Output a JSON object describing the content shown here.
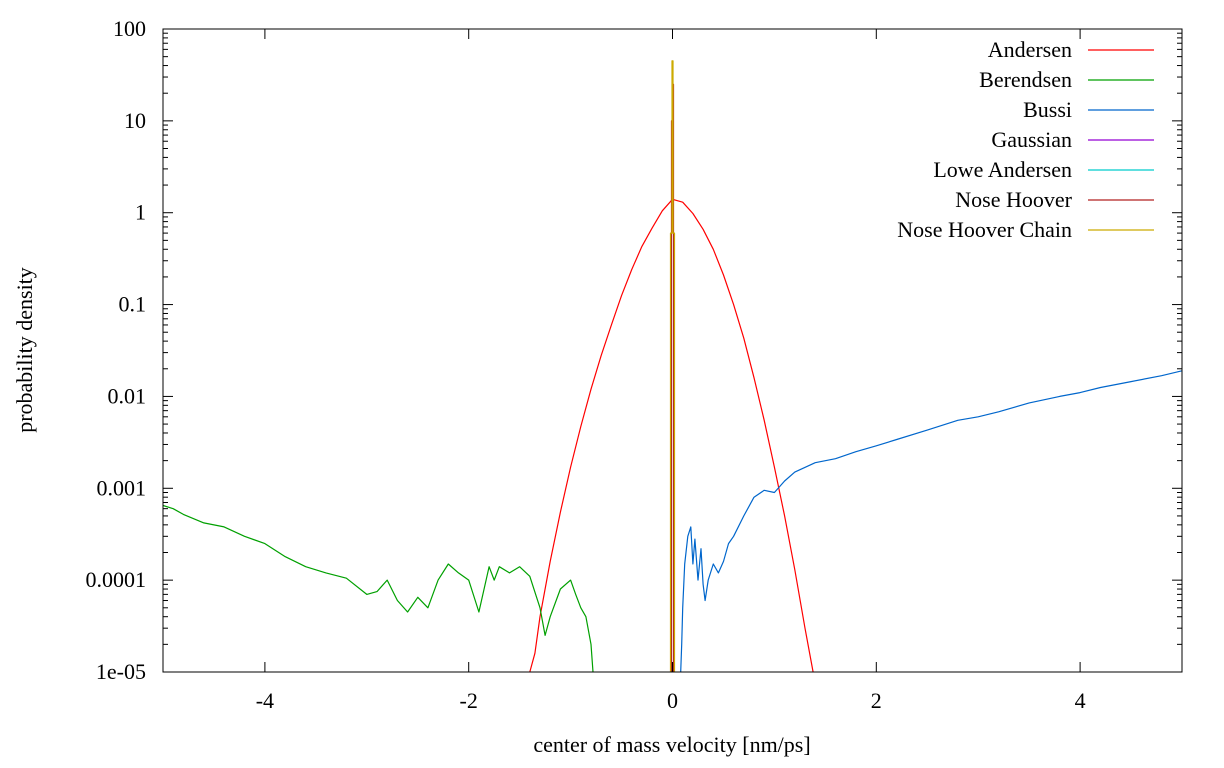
{
  "chart_data": {
    "type": "line",
    "xlabel": "center of mass velocity [nm/ps]",
    "ylabel": "probability density",
    "x_scale": "linear",
    "y_scale": "log",
    "xlim": [
      -5,
      5
    ],
    "ylim": [
      1e-05,
      100
    ],
    "x_ticks": [
      -4,
      -2,
      0,
      2,
      4
    ],
    "x_tick_labels": [
      "-4",
      "-2",
      "0",
      "2",
      "4"
    ],
    "y_ticks": [
      1e-05,
      0.0001,
      0.001,
      0.01,
      0.1,
      1,
      10,
      100
    ],
    "y_tick_labels": [
      "1e-05",
      "0.0001",
      "0.001",
      "0.01",
      "0.1",
      "1",
      "10",
      "100"
    ],
    "grid": false,
    "legend_position": "top-right",
    "series": [
      {
        "name": "Andersen",
        "color": "#ff0000",
        "x": [
          -1.4,
          -1.35,
          -1.3,
          -1.25,
          -1.2,
          -1.1,
          -1.0,
          -0.9,
          -0.8,
          -0.7,
          -0.6,
          -0.5,
          -0.4,
          -0.3,
          -0.2,
          -0.1,
          0.0,
          0.1,
          0.2,
          0.3,
          0.4,
          0.5,
          0.6,
          0.7,
          0.8,
          0.9,
          1.0,
          1.1,
          1.2,
          1.3,
          1.38
        ],
        "y": [
          1e-05,
          1.6e-05,
          4e-05,
          8e-05,
          0.00016,
          0.00055,
          0.0017,
          0.0047,
          0.012,
          0.028,
          0.06,
          0.125,
          0.24,
          0.43,
          0.68,
          1.05,
          1.4,
          1.3,
          0.98,
          0.66,
          0.4,
          0.21,
          0.1,
          0.043,
          0.016,
          0.0055,
          0.0017,
          0.0005,
          0.00013,
          3e-05,
          1e-05
        ]
      },
      {
        "name": "Berendsen",
        "color": "#00a000",
        "x": [
          -5.0,
          -4.9,
          -4.8,
          -4.6,
          -4.4,
          -4.2,
          -4.0,
          -3.8,
          -3.6,
          -3.4,
          -3.2,
          -3.0,
          -2.9,
          -2.8,
          -2.7,
          -2.6,
          -2.5,
          -2.4,
          -2.3,
          -2.2,
          -2.1,
          -2.0,
          -1.9,
          -1.8,
          -1.75,
          -1.7,
          -1.6,
          -1.5,
          -1.4,
          -1.3,
          -1.25,
          -1.2,
          -1.1,
          -1.0,
          -0.95,
          -0.9,
          -0.85,
          -0.8,
          -0.78
        ],
        "y": [
          0.00065,
          0.0006,
          0.00052,
          0.00042,
          0.00038,
          0.0003,
          0.00025,
          0.00018,
          0.00014,
          0.00012,
          0.000105,
          7e-05,
          7.5e-05,
          0.0001,
          6e-05,
          4.5e-05,
          6.5e-05,
          5e-05,
          0.0001,
          0.00015,
          0.00012,
          0.0001,
          4.5e-05,
          0.00014,
          0.0001,
          0.00014,
          0.00012,
          0.00014,
          0.00011,
          5e-05,
          2.5e-05,
          4e-05,
          8e-05,
          0.0001,
          7e-05,
          5e-05,
          4e-05,
          2e-05,
          1e-05
        ]
      },
      {
        "name": "Bussi",
        "color": "#0066cc",
        "x": [
          0.08,
          0.09,
          0.1,
          0.12,
          0.15,
          0.18,
          0.2,
          0.22,
          0.25,
          0.28,
          0.3,
          0.32,
          0.35,
          0.4,
          0.45,
          0.5,
          0.55,
          0.6,
          0.7,
          0.8,
          0.9,
          1.0,
          1.1,
          1.2,
          1.4,
          1.6,
          1.8,
          2.0,
          2.2,
          2.5,
          2.8,
          3.0,
          3.2,
          3.5,
          3.8,
          4.0,
          4.2,
          4.5,
          4.8,
          5.0
        ],
        "y": [
          1e-05,
          2e-05,
          5e-05,
          0.00015,
          0.0003,
          0.00038,
          0.00015,
          0.00028,
          0.0001,
          0.00022,
          9e-05,
          6e-05,
          0.0001,
          0.00015,
          0.00012,
          0.00016,
          0.00025,
          0.0003,
          0.0005,
          0.0008,
          0.00095,
          0.0009,
          0.0012,
          0.0015,
          0.0019,
          0.0021,
          0.0025,
          0.0029,
          0.0034,
          0.0043,
          0.0055,
          0.006,
          0.0068,
          0.0085,
          0.01,
          0.011,
          0.0125,
          0.0145,
          0.0168,
          0.019
        ]
      },
      {
        "name": "Gaussian",
        "color": "#9400d3",
        "x": [
          0.0,
          0.0
        ],
        "y": [
          1e-05,
          1e-05
        ]
      },
      {
        "name": "Lowe Andersen",
        "color": "#00cccc",
        "x": [
          0.0,
          0.0
        ],
        "y": [
          1e-05,
          1e-05
        ]
      },
      {
        "name": "Nose Hoover",
        "color": "#b22222",
        "x": [
          -0.01,
          -0.01,
          0.0,
          0.0,
          0.01,
          0.01
        ],
        "y": [
          1e-05,
          10,
          10,
          25,
          25,
          1e-05
        ]
      },
      {
        "name": "Nose Hoover Chain",
        "color": "#ccaa00",
        "x": [
          -0.02,
          -0.02,
          -0.005,
          -0.005,
          0.005,
          0.005,
          0.02,
          0.02
        ],
        "y": [
          1e-05,
          0.6,
          0.6,
          45,
          45,
          0.6,
          0.6,
          1e-05
        ]
      }
    ]
  }
}
